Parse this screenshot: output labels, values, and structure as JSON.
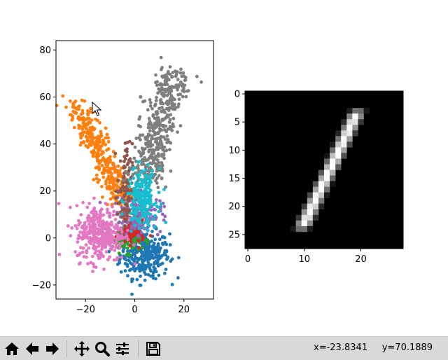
{
  "toolbar": {
    "buttons": [
      {
        "name": "home-icon",
        "label": "home"
      },
      {
        "name": "back-icon",
        "label": "back"
      },
      {
        "name": "forward-icon",
        "label": "forward"
      },
      {
        "name": "pan-icon",
        "label": "pan"
      },
      {
        "name": "zoom-icon",
        "label": "zoom"
      },
      {
        "name": "configure-subplots-icon",
        "label": "subplots"
      },
      {
        "name": "save-icon",
        "label": "save"
      }
    ],
    "x_readout": "x=-23.8341",
    "y_readout": "y=70.1889"
  },
  "chart_data": [
    {
      "type": "scatter",
      "title": "",
      "xlabel": "",
      "ylabel": "",
      "xlim": [
        -32,
        32
      ],
      "ylim": [
        -26,
        84
      ],
      "x_ticks": [
        "-20",
        "0",
        "20"
      ],
      "y_ticks": [
        "-20",
        "0",
        "20",
        "40",
        "60",
        "80"
      ],
      "grid": false,
      "series": [
        {
          "color": "#1f77b4",
          "center": [
            4,
            -7
          ],
          "spread": [
            5,
            5
          ],
          "count": 320
        },
        {
          "color": "#ff7f0e",
          "center": [
            -18,
            43
          ],
          "spread": [
            4,
            8
          ],
          "count": 360
        },
        {
          "color": "#2ca02c",
          "center": [
            -3,
            0
          ],
          "spread": [
            3,
            3
          ],
          "count": 120
        },
        {
          "color": "#d62728",
          "center": [
            -1,
            2
          ],
          "spread": [
            2.5,
            2.5
          ],
          "count": 80
        },
        {
          "color": "#9467bd",
          "center": [
            1,
            10
          ],
          "spread": [
            5,
            4
          ],
          "count": 160
        },
        {
          "color": "#8c564b",
          "center": [
            -4,
            20
          ],
          "spread": [
            1.5,
            10
          ],
          "count": 100
        },
        {
          "color": "#e377c2",
          "center": [
            -14,
            2
          ],
          "spread": [
            5,
            6
          ],
          "count": 340
        },
        {
          "color": "#7f7f7f",
          "center": [
            8,
            43
          ],
          "spread": [
            6,
            14
          ],
          "count": 420
        },
        {
          "color": "#17becf",
          "center": [
            3,
            17
          ],
          "spread": [
            3,
            6
          ],
          "count": 200
        }
      ]
    },
    {
      "type": "heatmap",
      "title": "",
      "xlim": [
        -0.5,
        27.5
      ],
      "ylim": [
        27.5,
        -0.5
      ],
      "x_ticks": [
        "0",
        "10",
        "20"
      ],
      "y_ticks": [
        "0",
        "5",
        "10",
        "15",
        "20",
        "25"
      ],
      "colormap": "gray",
      "description_values": "28x28 digit image of the numeral 1"
    }
  ]
}
